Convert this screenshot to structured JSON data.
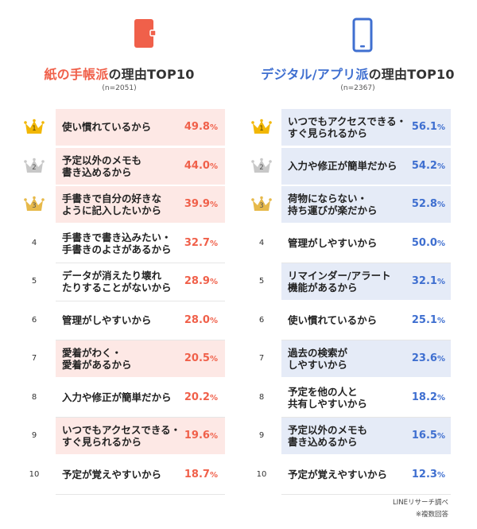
{
  "chart_data": [
    {
      "type": "table",
      "title_highlight": "紙の手帳派",
      "title_suffix": "の理由TOP10",
      "n": "(n=2051)",
      "icon": "notebook-icon",
      "accent": "#f0604a",
      "highlight_bg": "#fde8e5",
      "rows": [
        {
          "rank": "1",
          "label": "使い慣れているから",
          "value": 49.8,
          "unit": "%",
          "highlighted": true
        },
        {
          "rank": "2",
          "label": "予定以外のメモも\n書き込めるから",
          "value": 44.0,
          "unit": "%",
          "highlighted": true
        },
        {
          "rank": "3",
          "label": "手書きで自分の好きな\nように記入したいから",
          "value": 39.9,
          "unit": "%",
          "highlighted": true
        },
        {
          "rank": "4",
          "label": "手書きで書き込みたい・\n手書きのよさがあるから",
          "value": 32.7,
          "unit": "%",
          "highlighted": false
        },
        {
          "rank": "5",
          "label": "データが消えたり壊れ\nたりすることがないから",
          "value": 28.9,
          "unit": "%",
          "highlighted": false
        },
        {
          "rank": "6",
          "label": "管理がしやすいから",
          "value": 28.0,
          "unit": "%",
          "highlighted": false
        },
        {
          "rank": "7",
          "label": "愛着がわく・\n愛着があるから",
          "value": 20.5,
          "unit": "%",
          "highlighted": true
        },
        {
          "rank": "8",
          "label": "入力や修正が簡単だから",
          "value": 20.2,
          "unit": "%",
          "highlighted": false
        },
        {
          "rank": "9",
          "label": "いつでもアクセスできる・\nすぐ見られるから",
          "value": 19.6,
          "unit": "%",
          "highlighted": true
        },
        {
          "rank": "10",
          "label": "予定が覚えやすいから",
          "value": 18.7,
          "unit": "%",
          "highlighted": false
        }
      ]
    },
    {
      "type": "table",
      "title_highlight": "デジタル/アプリ派",
      "title_suffix": "の理由TOP10",
      "n": "(n=2367)",
      "icon": "smartphone-icon",
      "accent": "#3f6fd0",
      "highlight_bg": "#e5ebf7",
      "rows": [
        {
          "rank": "1",
          "label": "いつでもアクセスできる・\nすぐ見られるから",
          "value": 56.1,
          "unit": "%",
          "highlighted": true
        },
        {
          "rank": "2",
          "label": "入力や修正が簡単だから",
          "value": 54.2,
          "unit": "%",
          "highlighted": true
        },
        {
          "rank": "3",
          "label": "荷物にならない・\n持ち運びが楽だから",
          "value": 52.8,
          "unit": "%",
          "highlighted": true
        },
        {
          "rank": "4",
          "label": "管理がしやすいから",
          "value": 50.0,
          "unit": "%",
          "highlighted": false
        },
        {
          "rank": "5",
          "label": "リマインダー/アラート\n機能があるから",
          "value": 32.1,
          "unit": "%",
          "highlighted": true
        },
        {
          "rank": "6",
          "label": "使い慣れているから",
          "value": 25.1,
          "unit": "%",
          "highlighted": false
        },
        {
          "rank": "7",
          "label": "過去の検索が\nしやすいから",
          "value": 23.6,
          "unit": "%",
          "highlighted": true
        },
        {
          "rank": "8",
          "label": "予定を他の人と\n共有しやすいから",
          "value": 18.2,
          "unit": "%",
          "highlighted": false
        },
        {
          "rank": "9",
          "label": "予定以外のメモも\n書き込めるから",
          "value": 16.5,
          "unit": "%",
          "highlighted": true
        },
        {
          "rank": "10",
          "label": "予定が覚えやすいから",
          "value": 12.3,
          "unit": "%",
          "highlighted": false
        }
      ]
    }
  ],
  "crown_colors": {
    "1": "#f2b705",
    "2": "#c8c8c8",
    "3": "#e7b94a"
  },
  "footer": {
    "source": "LINEリサーチ調べ",
    "note": "※複数回答"
  }
}
